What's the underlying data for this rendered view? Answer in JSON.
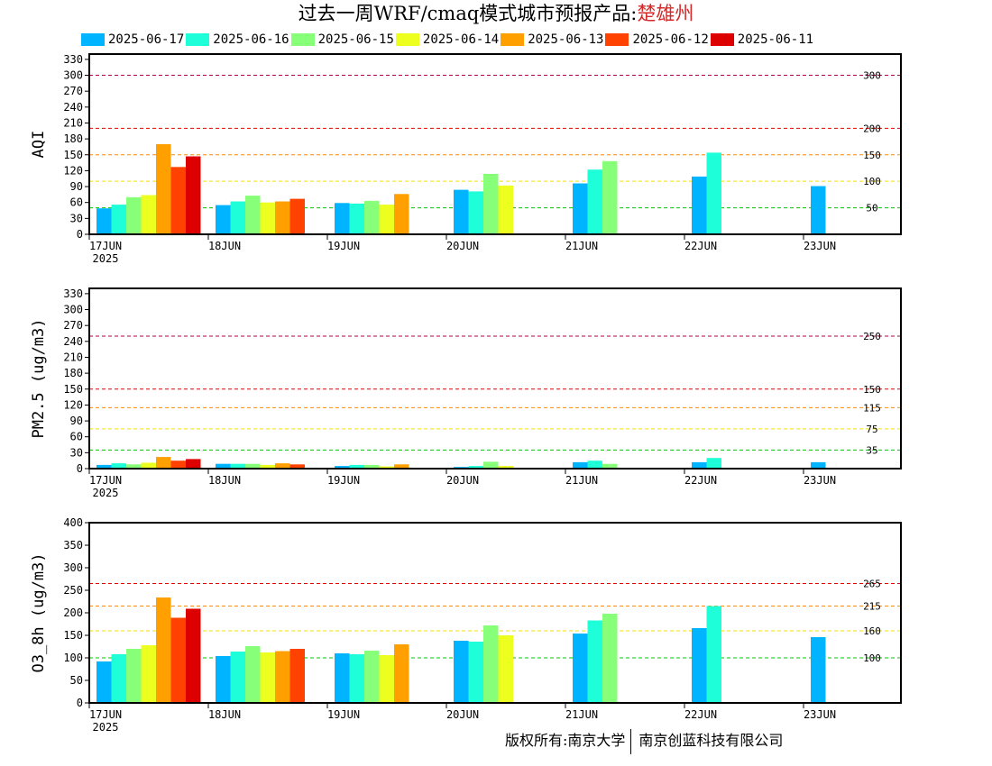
{
  "title": {
    "main": "过去一周WRF/cmaq模式城市预报产品:",
    "city": "楚雄州"
  },
  "copyright": {
    "left": "版权所有:南京大学",
    "right": "南京创蓝科技有限公司"
  },
  "colors": {
    "series": [
      "#00b4ff",
      "#1effd9",
      "#88ff78",
      "#ecff1e",
      "#ffa000",
      "#ff4200",
      "#dc0000"
    ],
    "threshold_lines": {
      "green": "#00c800",
      "yellow": "#f5e100",
      "orange": "#ff8c00",
      "red": "#e60000",
      "darkred": "#b4004b"
    }
  },
  "chart_data": [
    {
      "type": "bar",
      "ylabel": "AQI",
      "ylim": [
        0,
        340
      ],
      "yticks": [
        0,
        30,
        60,
        90,
        120,
        150,
        180,
        210,
        240,
        270,
        300,
        330
      ],
      "categories": [
        "17JUN",
        "18JUN",
        "19JUN",
        "20JUN",
        "21JUN",
        "22JUN",
        "23JUN"
      ],
      "first_category_year": "2025",
      "threshold_lines": [
        {
          "value": 50,
          "label": "50",
          "color": "green"
        },
        {
          "value": 100,
          "label": "100",
          "color": "yellow"
        },
        {
          "value": 150,
          "label": "150",
          "color": "orange"
        },
        {
          "value": 200,
          "label": "200",
          "color": "red"
        },
        {
          "value": 300,
          "label": "300",
          "color": "darkred"
        }
      ],
      "series": [
        {
          "name": "2025-06-17",
          "values": [
            49,
            55,
            59,
            84,
            96,
            109,
            91
          ]
        },
        {
          "name": "2025-06-16",
          "values": [
            56,
            62,
            58,
            81,
            122,
            154,
            null
          ]
        },
        {
          "name": "2025-06-15",
          "values": [
            70,
            73,
            63,
            114,
            138,
            null,
            null
          ]
        },
        {
          "name": "2025-06-14",
          "values": [
            74,
            60,
            56,
            92,
            null,
            null,
            null
          ]
        },
        {
          "name": "2025-06-13",
          "values": [
            170,
            62,
            76,
            null,
            null,
            null,
            null
          ]
        },
        {
          "name": "2025-06-12",
          "values": [
            127,
            67,
            null,
            null,
            null,
            null,
            null
          ]
        },
        {
          "name": "2025-06-11",
          "values": [
            147,
            null,
            null,
            null,
            null,
            null,
            null
          ]
        }
      ]
    },
    {
      "type": "bar",
      "ylabel": "PM2.5 (ug/m3)",
      "ylim": [
        0,
        340
      ],
      "yticks": [
        0,
        30,
        60,
        90,
        120,
        150,
        180,
        210,
        240,
        270,
        300,
        330
      ],
      "categories": [
        "17JUN",
        "18JUN",
        "19JUN",
        "20JUN",
        "21JUN",
        "22JUN",
        "23JUN"
      ],
      "first_category_year": "2025",
      "threshold_lines": [
        {
          "value": 35,
          "label": "35",
          "color": "green"
        },
        {
          "value": 75,
          "label": "75",
          "color": "yellow"
        },
        {
          "value": 115,
          "label": "115",
          "color": "orange"
        },
        {
          "value": 150,
          "label": "150",
          "color": "red"
        },
        {
          "value": 250,
          "label": "250",
          "color": "darkred"
        }
      ],
      "series": [
        {
          "name": "2025-06-17",
          "values": [
            7,
            9,
            5,
            3,
            12,
            12,
            12
          ]
        },
        {
          "name": "2025-06-16",
          "values": [
            10,
            9,
            7,
            5,
            15,
            20,
            null
          ]
        },
        {
          "name": "2025-06-15",
          "values": [
            8,
            9,
            7,
            13,
            9,
            null,
            null
          ]
        },
        {
          "name": "2025-06-14",
          "values": [
            11,
            7,
            4,
            5,
            null,
            null,
            null
          ]
        },
        {
          "name": "2025-06-13",
          "values": [
            22,
            10,
            8,
            null,
            null,
            null,
            null
          ]
        },
        {
          "name": "2025-06-12",
          "values": [
            15,
            8,
            null,
            null,
            null,
            null,
            null
          ]
        },
        {
          "name": "2025-06-11",
          "values": [
            18,
            null,
            null,
            null,
            null,
            null,
            null
          ]
        }
      ]
    },
    {
      "type": "bar",
      "ylabel": "O3_8h (ug/m3)",
      "ylim": [
        0,
        400
      ],
      "yticks": [
        0,
        50,
        100,
        150,
        200,
        250,
        300,
        350,
        400
      ],
      "categories": [
        "17JUN",
        "18JUN",
        "19JUN",
        "20JUN",
        "21JUN",
        "22JUN",
        "23JUN"
      ],
      "first_category_year": "2025",
      "threshold_lines": [
        {
          "value": 100,
          "label": "100",
          "color": "green"
        },
        {
          "value": 160,
          "label": "160",
          "color": "yellow"
        },
        {
          "value": 215,
          "label": "215",
          "color": "orange"
        },
        {
          "value": 265,
          "label": "265",
          "color": "red"
        }
      ],
      "series": [
        {
          "name": "2025-06-17",
          "values": [
            92,
            104,
            110,
            138,
            154,
            166,
            146
          ]
        },
        {
          "name": "2025-06-16",
          "values": [
            108,
            114,
            108,
            136,
            183,
            215,
            null
          ]
        },
        {
          "name": "2025-06-15",
          "values": [
            120,
            126,
            116,
            172,
            198,
            null,
            null
          ]
        },
        {
          "name": "2025-06-14",
          "values": [
            128,
            112,
            106,
            150,
            null,
            null,
            null
          ]
        },
        {
          "name": "2025-06-13",
          "values": [
            234,
            115,
            130,
            null,
            null,
            null,
            null
          ]
        },
        {
          "name": "2025-06-12",
          "values": [
            189,
            120,
            null,
            null,
            null,
            null,
            null
          ]
        },
        {
          "name": "2025-06-11",
          "values": [
            209,
            null,
            null,
            null,
            null,
            null,
            null
          ]
        }
      ]
    }
  ]
}
